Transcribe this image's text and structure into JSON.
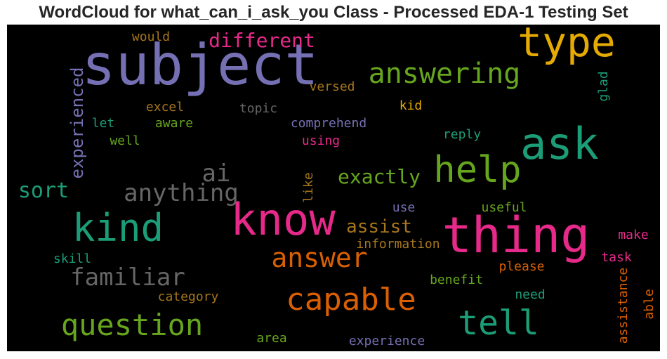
{
  "title": "WordCloud for what_can_i_ask_you Class - Processed EDA-1 Testing Set",
  "chart_data": {
    "type": "wordcloud",
    "background": "#000000",
    "words": [
      {
        "text": "subject",
        "color": "#7570b3",
        "orientation": "horizontal"
      },
      {
        "text": "type",
        "color": "#e6ab02",
        "orientation": "horizontal"
      },
      {
        "text": "ask",
        "color": "#1b9e77",
        "orientation": "horizontal"
      },
      {
        "text": "thing",
        "color": "#e7298a",
        "orientation": "horizontal"
      },
      {
        "text": "know",
        "color": "#e7298a",
        "orientation": "horizontal"
      },
      {
        "text": "kind",
        "color": "#1b9e77",
        "orientation": "horizontal"
      },
      {
        "text": "help",
        "color": "#66a61e",
        "orientation": "horizontal"
      },
      {
        "text": "answering",
        "color": "#66a61e",
        "orientation": "horizontal"
      },
      {
        "text": "question",
        "color": "#66a61e",
        "orientation": "horizontal"
      },
      {
        "text": "capable",
        "color": "#d95f02",
        "orientation": "horizontal"
      },
      {
        "text": "tell",
        "color": "#1b9e77",
        "orientation": "horizontal"
      },
      {
        "text": "anything",
        "color": "#666666",
        "orientation": "horizontal"
      },
      {
        "text": "answer",
        "color": "#d95f02",
        "orientation": "horizontal"
      },
      {
        "text": "ai",
        "color": "#666666",
        "orientation": "horizontal"
      },
      {
        "text": "familiar",
        "color": "#666666",
        "orientation": "horizontal"
      },
      {
        "text": "different",
        "color": "#e7298a",
        "orientation": "horizontal"
      },
      {
        "text": "experienced",
        "color": "#7570b3",
        "orientation": "vertical"
      },
      {
        "text": "sort",
        "color": "#1b9e77",
        "orientation": "horizontal"
      },
      {
        "text": "exactly",
        "color": "#66a61e",
        "orientation": "horizontal"
      },
      {
        "text": "assist",
        "color": "#a6761d",
        "orientation": "horizontal"
      },
      {
        "text": "information",
        "color": "#a6761d",
        "orientation": "horizontal"
      },
      {
        "text": "would",
        "color": "#a6761d",
        "orientation": "horizontal"
      },
      {
        "text": "versed",
        "color": "#a6761d",
        "orientation": "horizontal"
      },
      {
        "text": "topic",
        "color": "#666666",
        "orientation": "horizontal"
      },
      {
        "text": "excel",
        "color": "#a6761d",
        "orientation": "horizontal"
      },
      {
        "text": "kid",
        "color": "#e6ab02",
        "orientation": "horizontal"
      },
      {
        "text": "glad",
        "color": "#1b9e77",
        "orientation": "vertical"
      },
      {
        "text": "let",
        "color": "#1b9e77",
        "orientation": "horizontal"
      },
      {
        "text": "aware",
        "color": "#66a61e",
        "orientation": "horizontal"
      },
      {
        "text": "comprehend",
        "color": "#7570b3",
        "orientation": "horizontal"
      },
      {
        "text": "well",
        "color": "#66a61e",
        "orientation": "horizontal"
      },
      {
        "text": "using",
        "color": "#e7298a",
        "orientation": "horizontal"
      },
      {
        "text": "reply",
        "color": "#1b9e77",
        "orientation": "horizontal"
      },
      {
        "text": "like",
        "color": "#a6761d",
        "orientation": "vertical"
      },
      {
        "text": "use",
        "color": "#7570b3",
        "orientation": "horizontal"
      },
      {
        "text": "useful",
        "color": "#66a61e",
        "orientation": "horizontal"
      },
      {
        "text": "make",
        "color": "#e7298a",
        "orientation": "horizontal"
      },
      {
        "text": "skill",
        "color": "#1b9e77",
        "orientation": "horizontal"
      },
      {
        "text": "task",
        "color": "#e7298a",
        "orientation": "horizontal"
      },
      {
        "text": "please",
        "color": "#d95f02",
        "orientation": "horizontal"
      },
      {
        "text": "benefit",
        "color": "#66a61e",
        "orientation": "horizontal"
      },
      {
        "text": "category",
        "color": "#a6761d",
        "orientation": "horizontal"
      },
      {
        "text": "need",
        "color": "#1b9e77",
        "orientation": "horizontal"
      },
      {
        "text": "assistance",
        "color": "#d95f02",
        "orientation": "vertical"
      },
      {
        "text": "able",
        "color": "#d95f02",
        "orientation": "vertical"
      },
      {
        "text": "area",
        "color": "#66a61e",
        "orientation": "horizontal"
      },
      {
        "text": "experience",
        "color": "#7570b3",
        "orientation": "horizontal"
      }
    ]
  }
}
